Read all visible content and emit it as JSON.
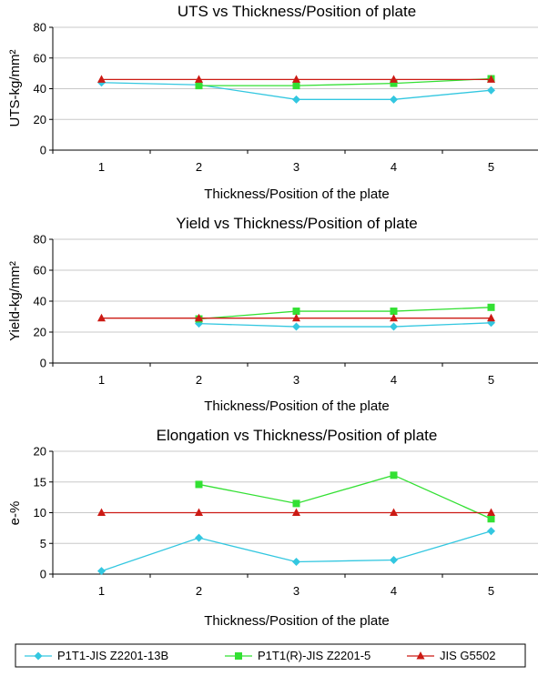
{
  "colors": {
    "s1": "#33c7e0",
    "s2": "#33e033",
    "s3": "#cc1a14",
    "grid": "#c8c8c8",
    "axis": "#808080"
  },
  "legend": {
    "items": [
      {
        "name": "P1T1-JIS Z2201-13B",
        "color": "#33c7e0",
        "marker": "diamond"
      },
      {
        "name": "P1T1(R)-JIS Z2201-5",
        "color": "#33e033",
        "marker": "square"
      },
      {
        "name": "JIS G5502",
        "color": "#cc1a14",
        "marker": "triangle"
      }
    ]
  },
  "chart_data": [
    {
      "type": "line",
      "title": "UTS vs Thickness/Position of plate",
      "xlabel": "Thickness/Position of the plate",
      "ylabel": "UTS-kg/mm²",
      "categories": [
        "1",
        "2",
        "3",
        "4",
        "5"
      ],
      "ylim": [
        0,
        80
      ],
      "yticks": [
        0,
        20,
        40,
        60,
        80
      ],
      "grid": true,
      "series": [
        {
          "name": "P1T1-JIS Z2201-13B",
          "marker": "diamond",
          "x": [
            1,
            2,
            3,
            4,
            5
          ],
          "values": [
            44,
            42.5,
            33,
            33,
            39
          ]
        },
        {
          "name": "P1T1(R)-JIS Z2201-5",
          "marker": "square",
          "x": [
            2,
            3,
            4,
            5
          ],
          "values": [
            42,
            42,
            43.5,
            46.5
          ]
        },
        {
          "name": "JIS G5502",
          "marker": "triangle",
          "x": [
            1,
            2,
            3,
            4,
            5
          ],
          "values": [
            46,
            46,
            46,
            46,
            46
          ]
        }
      ]
    },
    {
      "type": "line",
      "title": "Yield vs Thickness/Position of plate",
      "xlabel": "Thickness/Position of the plate",
      "ylabel": "Yield-kg/mm²",
      "categories": [
        "1",
        "2",
        "3",
        "4",
        "5"
      ],
      "ylim": [
        0,
        80
      ],
      "yticks": [
        0,
        20,
        40,
        60,
        80
      ],
      "grid": true,
      "series": [
        {
          "name": "P1T1-JIS Z2201-13B",
          "marker": "diamond",
          "x": [
            2,
            3,
            4,
            5
          ],
          "values": [
            25.5,
            23.5,
            23.5,
            26
          ]
        },
        {
          "name": "P1T1(R)-JIS Z2201-5",
          "marker": "square",
          "x": [
            2,
            3,
            4,
            5
          ],
          "values": [
            28.5,
            33.5,
            33.5,
            36
          ]
        },
        {
          "name": "JIS G5502",
          "marker": "triangle",
          "x": [
            1,
            2,
            3,
            4,
            5
          ],
          "values": [
            29,
            29,
            29,
            29,
            29
          ]
        }
      ]
    },
    {
      "type": "line",
      "title": "Elongation vs Thickness/Position of plate",
      "xlabel": "Thickness/Position of the plate",
      "ylabel": "e-%",
      "categories": [
        "1",
        "2",
        "3",
        "4",
        "5"
      ],
      "ylim": [
        0,
        20
      ],
      "yticks": [
        0,
        5,
        10,
        15,
        20
      ],
      "grid": true,
      "series": [
        {
          "name": "P1T1-JIS Z2201-13B",
          "marker": "diamond",
          "x": [
            1,
            2,
            3,
            4,
            5
          ],
          "values": [
            0.5,
            5.9,
            2,
            2.3,
            7
          ]
        },
        {
          "name": "P1T1(R)-JIS Z2201-5",
          "marker": "square",
          "x": [
            2,
            3,
            4,
            5
          ],
          "values": [
            14.6,
            11.5,
            16.1,
            9
          ]
        },
        {
          "name": "JIS G5502",
          "marker": "triangle",
          "x": [
            1,
            2,
            3,
            4,
            5
          ],
          "values": [
            10,
            10,
            10,
            10,
            10
          ]
        }
      ]
    }
  ]
}
